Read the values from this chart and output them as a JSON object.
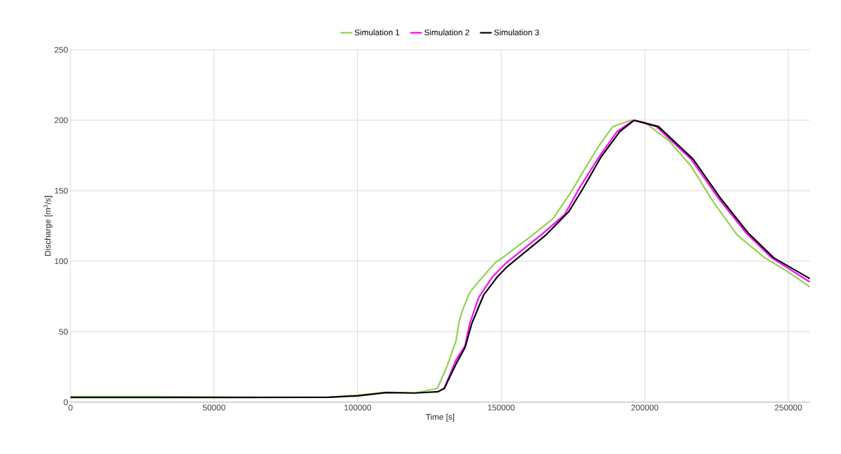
{
  "chart_data": {
    "type": "line",
    "xlabel": "Time [s]",
    "ylabel": "Discharge [m$^{3}$/s]",
    "xlim": [
      0,
      257500
    ],
    "ylim": [
      0,
      250
    ],
    "xticks": [
      0,
      50000,
      100000,
      150000,
      200000,
      250000
    ],
    "yticks": [
      0,
      50,
      100,
      150,
      200,
      250
    ],
    "grid": true,
    "legend": "top",
    "marker": "none",
    "line_style": "solid",
    "series": [
      {
        "name": "Simulation 1",
        "color": "#92d050",
        "x": [
          0,
          30000,
          60000,
          90000,
          100000,
          110000,
          120000,
          127770,
          131130,
          134260,
          135460,
          136670,
          139070,
          143160,
          147970,
          150380,
          160000,
          167950,
          174450,
          179260,
          184070,
          188880,
          195140,
          199950,
          208130,
          216070,
          224010,
          232190,
          241820,
          249760,
          257460
        ],
        "values": [
          4,
          4,
          3.5,
          3.5,
          5,
          7,
          6.5,
          9.8,
          25.5,
          43.6,
          58,
          66,
          78,
          88,
          99,
          102.4,
          117,
          130,
          149.5,
          166,
          182,
          195.5,
          200,
          198.5,
          186,
          167.6,
          141.6,
          118.6,
          102.4,
          92.6,
          81.8
        ]
      },
      {
        "name": "Simulation 2",
        "color": "#ff00ff",
        "x": [
          128000,
          130170,
          134260,
          137400,
          139070,
          142200,
          147010,
          151820,
          163860,
          172040,
          177570,
          184070,
          190330,
          196100,
          204040,
          216070,
          225690,
          235310,
          244210,
          257460
        ],
        "values": [
          7.4,
          9.8,
          30,
          40,
          56,
          74.5,
          89,
          99,
          118.6,
          133,
          153,
          174,
          192,
          200,
          195.5,
          172.5,
          144.6,
          120,
          102.4,
          85.3
        ]
      },
      {
        "name": "Simulation 3",
        "color": "#000000",
        "x": [
          0,
          30000,
          60000,
          90000,
          100000,
          110000,
          120000,
          128000,
          130170,
          134500,
          137400,
          139790,
          143880,
          148700,
          151820,
          165550,
          173480,
          178290,
          184790,
          191290,
          196340,
          204760,
          216790,
          226410,
          236030,
          244930,
          257460
        ],
        "values": [
          3.4,
          3.4,
          3.4,
          3.5,
          4.5,
          6.8,
          6.5,
          7.4,
          9.8,
          28,
          38.7,
          56,
          76,
          89,
          95.6,
          118.6,
          135,
          151,
          174,
          192,
          200,
          195.5,
          172.5,
          144.6,
          120,
          102.4,
          87.7
        ]
      }
    ]
  }
}
